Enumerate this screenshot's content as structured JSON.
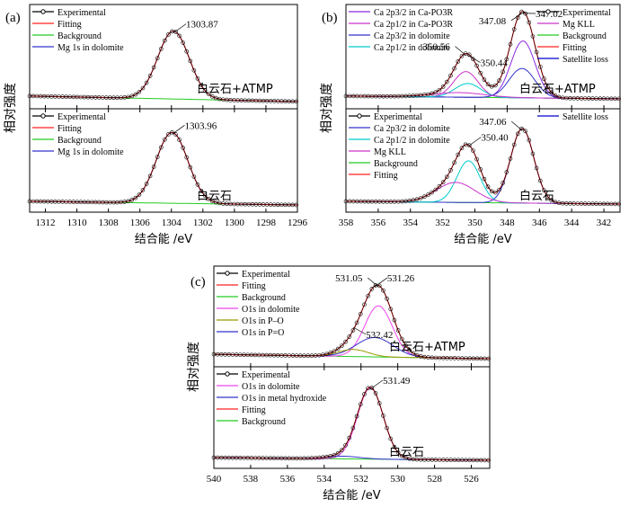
{
  "figure": {
    "description_labels": [
      "(a)",
      "(b)",
      "(c)"
    ]
  },
  "colors": {
    "experimental": "#000000",
    "fitting": "#ff2020",
    "background": "#22cc22",
    "mg1s": "#3333cc",
    "pk_b1": "#8a2be2",
    "pk_b2": "#cc33cc",
    "pk_b3": "#3333cc",
    "pk_b4": "#00cccc",
    "sat": "#0000cc"
  },
  "chart_data": [
    {
      "id": "a",
      "type": "line",
      "panel_label": "(a)",
      "xlabel": "结合能 /eV",
      "ylabel": "相对强度",
      "xlim": [
        1313,
        1296
      ],
      "xticks": [
        1312,
        1310,
        1308,
        1306,
        1304,
        1302,
        1300,
        1298,
        1296
      ],
      "subplots": [
        {
          "sample": "白云石+ATMP",
          "legend": [
            "Experimental",
            "Fitting",
            "Background",
            "Mg 1s in dolomite"
          ],
          "annotations": [
            {
              "text": "1303.87",
              "x": 1303.87
            }
          ],
          "baseline": 0.02,
          "bg_slope": 0.06,
          "peaks": [
            {
              "name": "Mg 1s in dolomite",
              "center": 1303.87,
              "amp": 0.74,
              "width": 1.0
            }
          ]
        },
        {
          "sample": "白云石",
          "legend": [
            "Experimental",
            "Fitting",
            "Background",
            "Mg 1s in dolomite"
          ],
          "annotations": [
            {
              "text": "1303.96",
              "x": 1303.96
            }
          ],
          "baseline": 0.02,
          "bg_slope": 0.04,
          "peaks": [
            {
              "name": "Mg 1s in dolomite",
              "center": 1303.96,
              "amp": 0.78,
              "width": 1.0
            }
          ]
        }
      ]
    },
    {
      "id": "b",
      "type": "line",
      "panel_label": "(b)",
      "xlabel": "结合能 /eV",
      "ylabel": "相对强度",
      "xlim": [
        358,
        341
      ],
      "xticks": [
        358,
        356,
        354,
        352,
        350,
        348,
        346,
        344,
        342
      ],
      "subplots": [
        {
          "sample": "白云石+ATMP",
          "legend_left": [
            "Ca 2p3/2 in Ca-PO3R",
            "Ca 2p1/2 in Ca-PO3R",
            "Ca 2p3/2 in dolomite",
            "Ca 2p1/2 in dolomite"
          ],
          "legend_right": [
            "Experimental",
            "Mg KLL",
            "Background",
            "Fitting",
            "Satellite loss"
          ],
          "annotations": [
            {
              "text": "347.02",
              "x": 347.02
            },
            {
              "text": "350.56",
              "x": 350.56
            },
            {
              "text": "350.44",
              "x": 350.44
            },
            {
              "text": "347.08",
              "x": 347.08
            }
          ],
          "baseline": 0.05,
          "bg_slope": 0.03,
          "peaks": [
            {
              "name": "Ca 2p3/2 in Ca-PO3R",
              "center": 347.02,
              "amp": 0.62,
              "width": 0.75
            },
            {
              "name": "Ca 2p1/2 in Ca-PO3R",
              "center": 350.56,
              "amp": 0.28,
              "width": 0.75
            },
            {
              "name": "Ca 2p3/2 in dolomite",
              "center": 347.08,
              "amp": 0.32,
              "width": 0.8
            },
            {
              "name": "Ca 2p1/2 in dolomite",
              "center": 350.44,
              "amp": 0.15,
              "width": 0.8
            },
            {
              "name": "Mg KLL",
              "center": 351.0,
              "amp": 0.05,
              "width": 1.6
            }
          ]
        },
        {
          "sample": "白云石",
          "legend_left": [
            "Experimental",
            "Ca 2p3/2 in dolomite",
            "Ca 2p1/2 in dolomite",
            "Mg KLL",
            "Background",
            "Fitting"
          ],
          "legend_right": [
            "Satellite loss"
          ],
          "annotations": [
            {
              "text": "350.40",
              "x": 350.4
            },
            {
              "text": "347.06",
              "x": 347.06
            }
          ],
          "baseline": 0.03,
          "bg_slope": 0.03,
          "peaks": [
            {
              "name": "Ca 2p3/2 in dolomite",
              "center": 347.06,
              "amp": 0.82,
              "width": 0.72
            },
            {
              "name": "Ca 2p1/2 in dolomite",
              "center": 350.4,
              "amp": 0.46,
              "width": 0.72
            },
            {
              "name": "Mg KLL",
              "center": 351.2,
              "amp": 0.22,
              "width": 1.2
            }
          ]
        }
      ]
    },
    {
      "id": "c",
      "type": "line",
      "panel_label": "(c)",
      "xlabel": "结合能 /eV",
      "ylabel": "相对强度",
      "xlim": [
        540,
        525
      ],
      "xticks": [
        540,
        538,
        536,
        534,
        532,
        530,
        528,
        526
      ],
      "subplots": [
        {
          "sample": "白云石+ATMP",
          "legend": [
            "Experimental",
            "Fitting",
            "Background",
            "O1s in dolomite",
            "O1s in P–O",
            "O1s in P=O"
          ],
          "annotations": [
            {
              "text": "531.26",
              "x": 531.26
            },
            {
              "text": "531.05",
              "x": 531.05
            },
            {
              "text": "532.42",
              "x": 532.42
            }
          ],
          "baseline": 0.03,
          "bg_slope": 0.05,
          "peaks": [
            {
              "name": "O1s in dolomite",
              "center": 531.05,
              "amp": 0.58,
              "width": 0.75
            },
            {
              "name": "O1s in P=O",
              "center": 531.26,
              "amp": 0.22,
              "width": 1.0
            },
            {
              "name": "O1s in P–O",
              "center": 532.42,
              "amp": 0.08,
              "width": 0.8
            }
          ]
        },
        {
          "sample": "白云石",
          "legend": [
            "Experimental",
            "O1s in dolomite",
            "O1s in metal hydroxide",
            "Fitting",
            "Background"
          ],
          "annotations": [
            {
              "text": "531.49",
              "x": 531.49
            }
          ],
          "baseline": 0.03,
          "bg_slope": 0.03,
          "peaks": [
            {
              "name": "O1s in dolomite",
              "center": 531.49,
              "amp": 0.8,
              "width": 0.7
            },
            {
              "name": "O1s in metal hydroxide",
              "center": 533.0,
              "amp": 0.03,
              "width": 0.9
            }
          ]
        }
      ]
    }
  ]
}
